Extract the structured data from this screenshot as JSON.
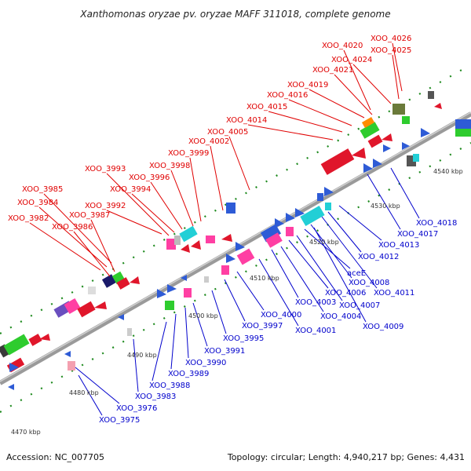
{
  "title": "Xanthomonas oryzae pv. oryzae MAFF 311018, complete genome",
  "footer": {
    "accession": "Accession: NC_007705",
    "summary": "Topology: circular; Length: 4,940,217 bp; Genes: 4,431"
  },
  "colors": {
    "backbone": "#999999",
    "leader_red": "#e00000",
    "leader_blue": "#0000cc",
    "dots": "#1e8a1e"
  },
  "ticks": [
    {
      "label": "4470 kbp"
    },
    {
      "label": "4480 kbp"
    },
    {
      "label": "4490 kbp"
    },
    {
      "label": "4500 kbp"
    },
    {
      "label": "4510 kbp"
    },
    {
      "label": "4520 kbp"
    },
    {
      "label": "4530 kbp"
    },
    {
      "label": "4540 kbp"
    }
  ],
  "labels_top": [
    "XOO_3982",
    "XOO_3984",
    "XOO_3985",
    "XOO_3986",
    "XOO_3987",
    "XOO_3992",
    "XOO_3994",
    "XOO_3993",
    "XOO_3996",
    "XOO_3998",
    "XOO_3999",
    "XOO_4002",
    "XOO_4005",
    "XOO_4014",
    "XOO_4015",
    "XOO_4016",
    "XOO_4019",
    "XOO_4021",
    "XOO_4024",
    "XOO_4020",
    "XOO_4025",
    "XOO_4026"
  ],
  "labels_bottom": [
    "XOO_3975",
    "XOO_3976",
    "XOO_3983",
    "XOO_3988",
    "XOO_3989",
    "XOO_3990",
    "XOO_3991",
    "XOO_3995",
    "XOO_3997",
    "XOO_4000",
    "XOO_4001",
    "XOO_4003",
    "XOO_4004",
    "XOO_4006",
    "XOO_4007",
    "aceE",
    "XOO_4008",
    "XOO_4009",
    "XOO_4011",
    "XOO_4012",
    "XOO_4013",
    "XOO_4017",
    "XOO_4018"
  ]
}
